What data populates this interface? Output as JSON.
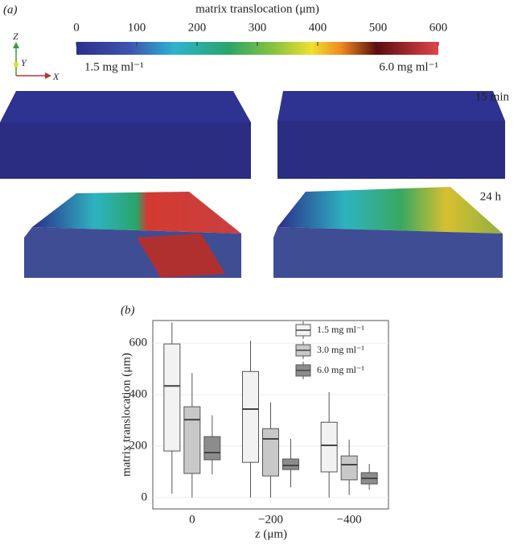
{
  "panel_labels": [
    "(a)",
    "(b)"
  ],
  "axes_glyph": [
    "Z",
    "Y",
    "X"
  ],
  "colorbar": {
    "title": "matrix translocation (μm)",
    "xlim": [
      0,
      600
    ],
    "xticks": [
      0,
      100,
      200,
      300,
      400,
      500,
      600
    ],
    "low_label": "1.5 mg ml⁻¹",
    "high_label": "6.0 mg ml⁻¹"
  },
  "render_labels": [
    "15 min",
    "24 h"
  ],
  "chart_data": {
    "type": "box",
    "ylabel": "matrix translocation (μm)",
    "xlabel": "z (μm)",
    "categories": [
      "0",
      "−200",
      "−400"
    ],
    "ylim": [
      -44,
      688
    ],
    "yticks": [
      0,
      200,
      400,
      600
    ],
    "grid": true,
    "legend": "top-right",
    "series": [
      {
        "name": "1.5 mg ml⁻¹",
        "color": "#f2f2f2",
        "whislo": [
          15,
          0,
          0
        ],
        "q1": [
          181,
          137,
          100
        ],
        "median": [
          434,
          344,
          203
        ],
        "q3": [
          597,
          490,
          293
        ],
        "whishi": [
          680,
          610,
          410
        ]
      },
      {
        "name": "3.0 mg ml⁻¹",
        "color": "#c8c8c8",
        "whislo": [
          0,
          0,
          10
        ],
        "q1": [
          94,
          84,
          69
        ],
        "median": [
          303,
          228,
          128
        ],
        "q3": [
          353,
          268,
          162
        ],
        "whishi": [
          484,
          370,
          225
        ]
      },
      {
        "name": "6.0 mg ml⁻¹",
        "color": "#8c8c8c",
        "whislo": [
          90,
          40,
          30
        ],
        "q1": [
          147,
          109,
          53
        ],
        "median": [
          175,
          125,
          75
        ],
        "q3": [
          237,
          150,
          97
        ],
        "whishi": [
          320,
          228,
          131
        ]
      }
    ]
  }
}
